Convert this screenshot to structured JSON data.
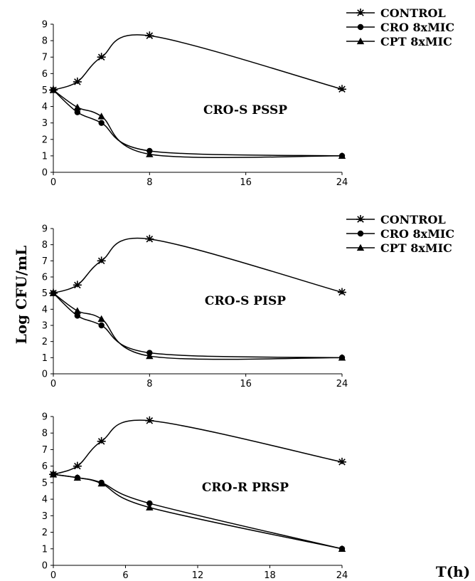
{
  "figure": {
    "ylabel": "Log CFU/mL",
    "xlabel": "T(h)"
  },
  "chart_data": [
    {
      "type": "line",
      "title": "CRO-S PSSP",
      "ylim": [
        0,
        9
      ],
      "y_ticks": [
        0,
        1,
        2,
        3,
        4,
        5,
        6,
        7,
        8,
        9
      ],
      "xlim": [
        0,
        24
      ],
      "x_ticks": [
        0,
        8,
        16,
        24
      ],
      "legend_position": "top-right",
      "series": [
        {
          "name": "CONTROL",
          "marker": "star",
          "x": [
            0,
            2,
            4,
            8,
            24
          ],
          "y": [
            5.0,
            5.5,
            7.0,
            8.3,
            5.05
          ]
        },
        {
          "name": "CRO 8xMIC",
          "marker": "circle",
          "x": [
            0,
            2,
            4,
            8,
            24
          ],
          "y": [
            5.0,
            3.65,
            3.0,
            1.3,
            1.0
          ]
        },
        {
          "name": "CPT 8xMIC",
          "marker": "triangle",
          "x": [
            0,
            2,
            4,
            8,
            24
          ],
          "y": [
            5.0,
            3.95,
            3.4,
            1.1,
            1.0
          ]
        }
      ]
    },
    {
      "type": "line",
      "title": "CRO-S PISP",
      "ylim": [
        0,
        9
      ],
      "y_ticks": [
        0,
        1,
        2,
        3,
        4,
        5,
        6,
        7,
        8,
        9
      ],
      "xlim": [
        0,
        24
      ],
      "x_ticks": [
        0,
        8,
        16,
        24
      ],
      "legend_position": "top-right",
      "series": [
        {
          "name": "CONTROL",
          "marker": "star",
          "x": [
            0,
            2,
            4,
            8,
            24
          ],
          "y": [
            5.0,
            5.5,
            7.0,
            8.35,
            5.05
          ]
        },
        {
          "name": "CRO 8xMIC",
          "marker": "circle",
          "x": [
            0,
            2,
            4,
            8,
            24
          ],
          "y": [
            5.0,
            3.6,
            3.0,
            1.3,
            1.0
          ]
        },
        {
          "name": "CPT 8xMIC",
          "marker": "triangle",
          "x": [
            0,
            2,
            4,
            8,
            24
          ],
          "y": [
            5.0,
            3.9,
            3.4,
            1.1,
            1.0
          ]
        }
      ]
    },
    {
      "type": "line",
      "title": "CRO-R PRSP",
      "ylim": [
        0,
        9
      ],
      "y_ticks": [
        0,
        1,
        2,
        3,
        4,
        5,
        6,
        7,
        8,
        9
      ],
      "xlim": [
        0,
        24
      ],
      "x_ticks": [
        0,
        6,
        12,
        18,
        24
      ],
      "series": [
        {
          "name": "CONTROL",
          "marker": "star",
          "x": [
            0,
            2,
            4,
            8,
            24
          ],
          "y": [
            5.5,
            6.0,
            7.5,
            8.75,
            6.25
          ]
        },
        {
          "name": "CRO 8xMIC",
          "marker": "circle",
          "x": [
            0,
            2,
            4,
            8,
            24
          ],
          "y": [
            5.5,
            5.3,
            5.0,
            3.75,
            1.0
          ]
        },
        {
          "name": "CPT 8xMIC",
          "marker": "triangle",
          "x": [
            0,
            2,
            4,
            8,
            24
          ],
          "y": [
            5.5,
            5.3,
            4.95,
            3.5,
            1.0
          ]
        }
      ]
    }
  ]
}
